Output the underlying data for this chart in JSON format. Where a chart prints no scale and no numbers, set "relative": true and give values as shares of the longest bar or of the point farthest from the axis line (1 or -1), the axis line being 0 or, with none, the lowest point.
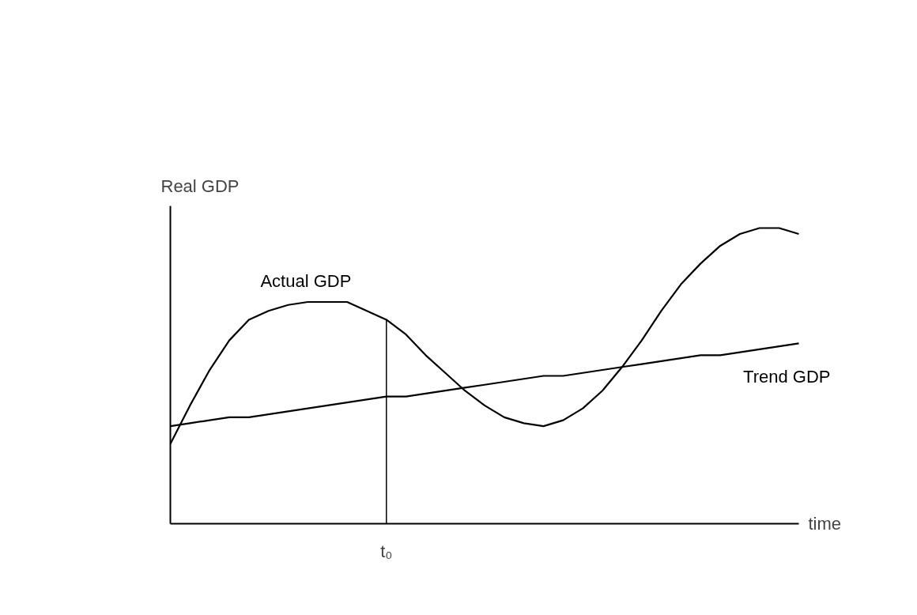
{
  "chart_data": {
    "type": "line",
    "relative": true,
    "ylabel": "Real GDP",
    "xlabel": "time",
    "categories": [
      null,
      null,
      null,
      null,
      null,
      null,
      null,
      null,
      null,
      null,
      null,
      null,
      null,
      null,
      null,
      null,
      null,
      null,
      null,
      null,
      null,
      null,
      null,
      null,
      null,
      null,
      null,
      null,
      null,
      null,
      null,
      null,
      null
    ],
    "series": [
      {
        "name": "Actual GDP",
        "color": "#000000",
        "values": [
          0.27,
          0.4,
          0.52,
          0.62,
          0.69,
          0.72,
          0.74,
          0.75,
          0.75,
          0.75,
          0.72,
          0.69,
          0.64,
          0.57,
          0.51,
          0.45,
          0.4,
          0.36,
          0.34,
          0.33,
          0.35,
          0.39,
          0.45,
          0.53,
          0.62,
          0.72,
          0.81,
          0.88,
          0.94,
          0.98,
          1.0,
          1.0,
          0.98
        ]
      },
      {
        "name": "Trend GDP",
        "color": "#000000",
        "values": [
          0.33,
          0.34,
          0.35,
          0.36,
          0.36,
          0.37,
          0.38,
          0.39,
          0.4,
          0.41,
          0.42,
          0.43,
          0.43,
          0.44,
          0.45,
          0.46,
          0.47,
          0.48,
          0.49,
          0.5,
          0.5,
          0.51,
          0.52,
          0.53,
          0.54,
          0.55,
          0.56,
          0.57,
          0.57,
          0.58,
          0.59,
          0.6,
          0.61
        ]
      }
    ],
    "annotations": [
      "t₀"
    ],
    "grid": false,
    "marker": "none",
    "line_style": "solid"
  }
}
